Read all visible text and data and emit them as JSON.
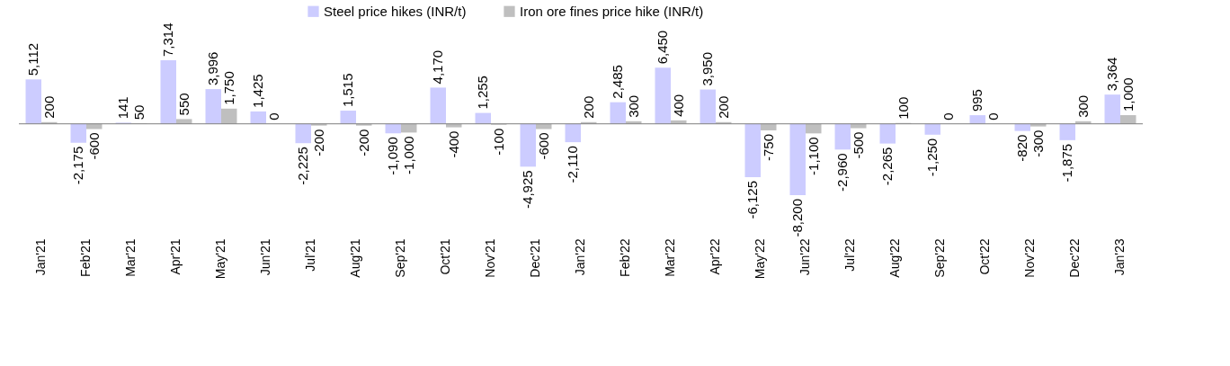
{
  "chart_data": {
    "type": "bar",
    "categories": [
      "Jan'21",
      "Feb'21",
      "Mar'21",
      "Apr'21",
      "May'21",
      "Jun'21",
      "Jul'21",
      "Aug'21",
      "Sep'21",
      "Oct'21",
      "Nov'21",
      "Dec'21",
      "Jan'22",
      "Feb'22",
      "Mar'22",
      "Apr'22",
      "May'22",
      "Jun'22",
      "Jul'22",
      "Aug'22",
      "Sep'22",
      "Oct'22",
      "Nov'22",
      "Dec'22",
      "Jan'23"
    ],
    "series": [
      {
        "name": "Steel price hikes (INR/t)",
        "color": "#ccccff",
        "values": [
          5112,
          -2175,
          141,
          7314,
          3996,
          1425,
          -2225,
          1515,
          -1090,
          4170,
          1255,
          -4925,
          -2110,
          2485,
          6450,
          3950,
          -6125,
          -8200,
          -2960,
          -2265,
          -1250,
          995,
          -820,
          -1875,
          3364
        ],
        "value_labels": [
          "5,112",
          "-2,175",
          "141",
          "7,314",
          "3,996",
          "1,425",
          "-2,225",
          "1,515",
          "-1,090",
          "4,170",
          "1,255",
          "-4,925",
          "-2,110",
          "2,485",
          "6,450",
          "3,950",
          "-6,125",
          "-8,200",
          "-2,960",
          "-2,265",
          "-1,250",
          "995",
          "-820",
          "-1,875",
          "3,364"
        ]
      },
      {
        "name": "Iron ore fines price hike (INR/t)",
        "color": "#bfbfbf",
        "values": [
          200,
          -600,
          50,
          550,
          1750,
          0,
          -200,
          -200,
          -1000,
          -400,
          -100,
          -600,
          200,
          300,
          400,
          200,
          -750,
          -1100,
          -500,
          100,
          0,
          0,
          -300,
          300,
          1000
        ],
        "value_labels": [
          "200",
          "-600",
          "50",
          "550",
          "1,750",
          "0",
          "-200",
          "-200",
          "-1,000",
          "-400",
          "-100",
          "-600",
          "200",
          "300",
          "400",
          "200",
          "-750",
          "-1,100",
          "-500",
          "100",
          "0",
          "0",
          "-300",
          "300",
          "1,000"
        ]
      }
    ],
    "legend": "top",
    "grid": false
  }
}
